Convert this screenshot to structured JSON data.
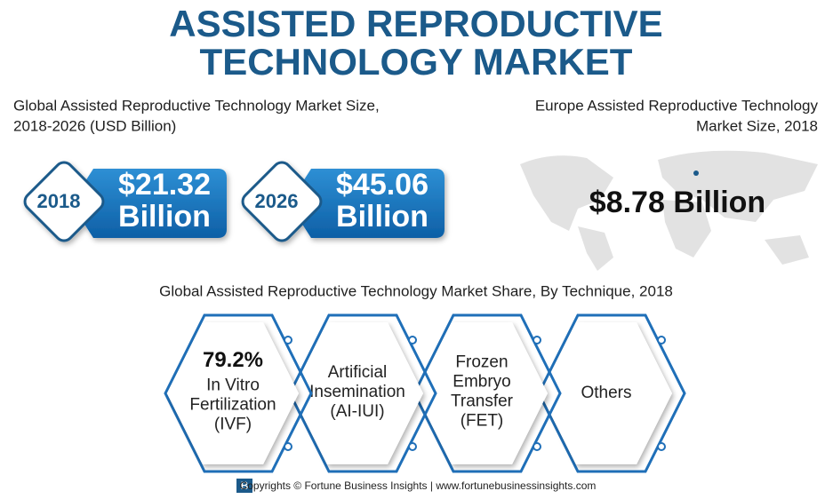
{
  "header": {
    "title_lines": [
      "ASSISTED REPRODUCTIVE",
      "TECHNOLOGY MARKET"
    ]
  },
  "global_size": {
    "heading_lines": [
      "Global Assisted Reproductive Technology Market Size,",
      "2018-2026 (USD Billion)"
    ],
    "items": [
      {
        "year": "2018",
        "value": "$21.32",
        "unit": "Billion"
      },
      {
        "year": "2026",
        "value": "$45.06",
        "unit": "Billion"
      }
    ]
  },
  "europe": {
    "heading_lines": [
      "Europe Assisted Reproductive Technology",
      "Market Size, 2018"
    ],
    "value": "$8.78 Billion"
  },
  "share": {
    "heading": "Global Assisted Reproductive Technology Market Share, By Technique, 2018",
    "segments": [
      {
        "share": "79.2%",
        "label_lines": [
          "In Vitro",
          "Fertilization",
          "(IVF)"
        ]
      },
      {
        "label_lines": [
          "Artificial",
          "Insemination",
          "(AI-IUI)"
        ]
      },
      {
        "label_lines": [
          "Frozen",
          "Embryo",
          "Transfer",
          "(FET)"
        ]
      },
      {
        "label_lines": [
          "Others"
        ]
      }
    ]
  },
  "footer": {
    "text": "Copyrights © Fortune Business Insights | www.fortunebusinessinsights.com"
  }
}
